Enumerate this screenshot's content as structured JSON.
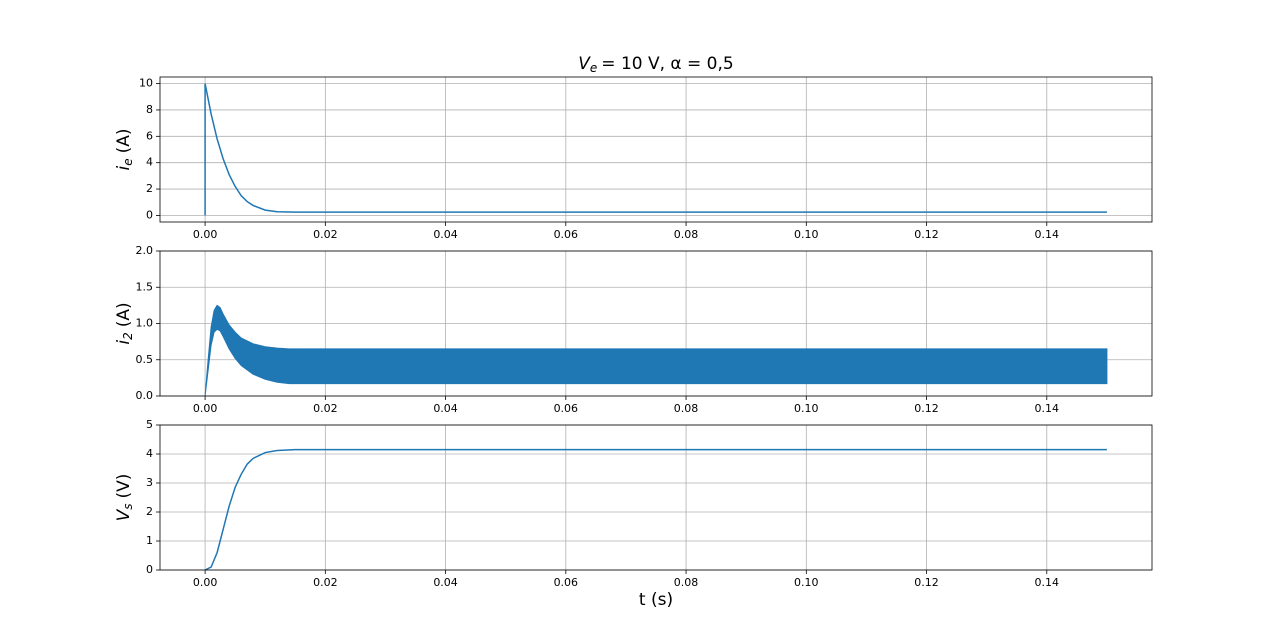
{
  "chart_data": [
    {
      "type": "line",
      "title": {
        "symbol": "V",
        "subscript": "e",
        "rest": "= 10 V,  α = 0,5"
      },
      "ylabel": {
        "symbol": "i",
        "subscript": "e",
        "unit": "(A)"
      },
      "x": [
        0,
        0,
        0.001,
        0.002,
        0.003,
        0.004,
        0.005,
        0.006,
        0.007,
        0.008,
        0.01,
        0.012,
        0.015,
        0.15
      ],
      "values": [
        0,
        10,
        7.7,
        5.8,
        4.3,
        3.1,
        2.2,
        1.5,
        1.05,
        0.75,
        0.4,
        0.28,
        0.25,
        0.25
      ],
      "color": "#1f77b4",
      "xlim": [
        -0.0075,
        0.1575
      ],
      "ylim": [
        -0.5,
        10.5
      ],
      "xticks": [
        {
          "value": 0,
          "label": "0.00"
        },
        {
          "value": 0.02,
          "label": "0.02"
        },
        {
          "value": 0.04,
          "label": "0.04"
        },
        {
          "value": 0.06,
          "label": "0.06"
        },
        {
          "value": 0.08,
          "label": "0.08"
        },
        {
          "value": 0.1,
          "label": "0.10"
        },
        {
          "value": 0.12,
          "label": "0.12"
        },
        {
          "value": 0.14,
          "label": "0.14"
        }
      ],
      "yticks": [
        0,
        2,
        4,
        6,
        8,
        10
      ],
      "grid": true
    },
    {
      "type": "range",
      "ylabel": {
        "symbol": "i",
        "subscript": "2",
        "unit": "(A)"
      },
      "x": [
        0,
        0.0005,
        0.001,
        0.0015,
        0.002,
        0.0025,
        0.003,
        0.004,
        0.005,
        0.006,
        0.008,
        0.01,
        0.012,
        0.014,
        0.02,
        0.15
      ],
      "high": [
        0,
        0.5,
        0.95,
        1.18,
        1.25,
        1.22,
        1.13,
        0.98,
        0.88,
        0.8,
        0.72,
        0.68,
        0.66,
        0.65,
        0.65,
        0.65
      ],
      "low": [
        0,
        0.35,
        0.7,
        0.88,
        0.92,
        0.9,
        0.82,
        0.65,
        0.52,
        0.42,
        0.3,
        0.23,
        0.19,
        0.17,
        0.17,
        0.17
      ],
      "color": "#1f77b4",
      "xlim": [
        -0.0075,
        0.1575
      ],
      "ylim": [
        0,
        2
      ],
      "xticks": [
        {
          "value": 0,
          "label": "0.00"
        },
        {
          "value": 0.02,
          "label": "0.02"
        },
        {
          "value": 0.04,
          "label": "0.04"
        },
        {
          "value": 0.06,
          "label": "0.06"
        },
        {
          "value": 0.08,
          "label": "0.08"
        },
        {
          "value": 0.1,
          "label": "0.10"
        },
        {
          "value": 0.12,
          "label": "0.12"
        },
        {
          "value": 0.14,
          "label": "0.14"
        }
      ],
      "yticks": [
        {
          "value": 0,
          "label": "0.0"
        },
        0.5,
        {
          "value": 1,
          "label": "1.0"
        },
        1.5,
        {
          "value": 2,
          "label": "2.0"
        }
      ],
      "grid": true
    },
    {
      "type": "line",
      "ylabel": {
        "symbol": "V",
        "subscript": "s",
        "unit": "(V)"
      },
      "xlabel": "t (s)",
      "x": [
        0,
        0.001,
        0.002,
        0.003,
        0.004,
        0.005,
        0.006,
        0.007,
        0.008,
        0.01,
        0.012,
        0.015,
        0.15
      ],
      "values": [
        0,
        0.1,
        0.6,
        1.4,
        2.2,
        2.85,
        3.3,
        3.65,
        3.85,
        4.05,
        4.12,
        4.15,
        4.15
      ],
      "color": "#1f77b4",
      "xlim": [
        -0.0075,
        0.1575
      ],
      "ylim": [
        0,
        5
      ],
      "xticks": [
        {
          "value": 0,
          "label": "0.00"
        },
        {
          "value": 0.02,
          "label": "0.02"
        },
        {
          "value": 0.04,
          "label": "0.04"
        },
        {
          "value": 0.06,
          "label": "0.06"
        },
        {
          "value": 0.08,
          "label": "0.08"
        },
        {
          "value": 0.1,
          "label": "0.10"
        },
        {
          "value": 0.12,
          "label": "0.12"
        },
        {
          "value": 0.14,
          "label": "0.14"
        }
      ],
      "yticks": [
        0,
        1,
        2,
        3,
        4,
        5
      ],
      "grid": true
    }
  ]
}
